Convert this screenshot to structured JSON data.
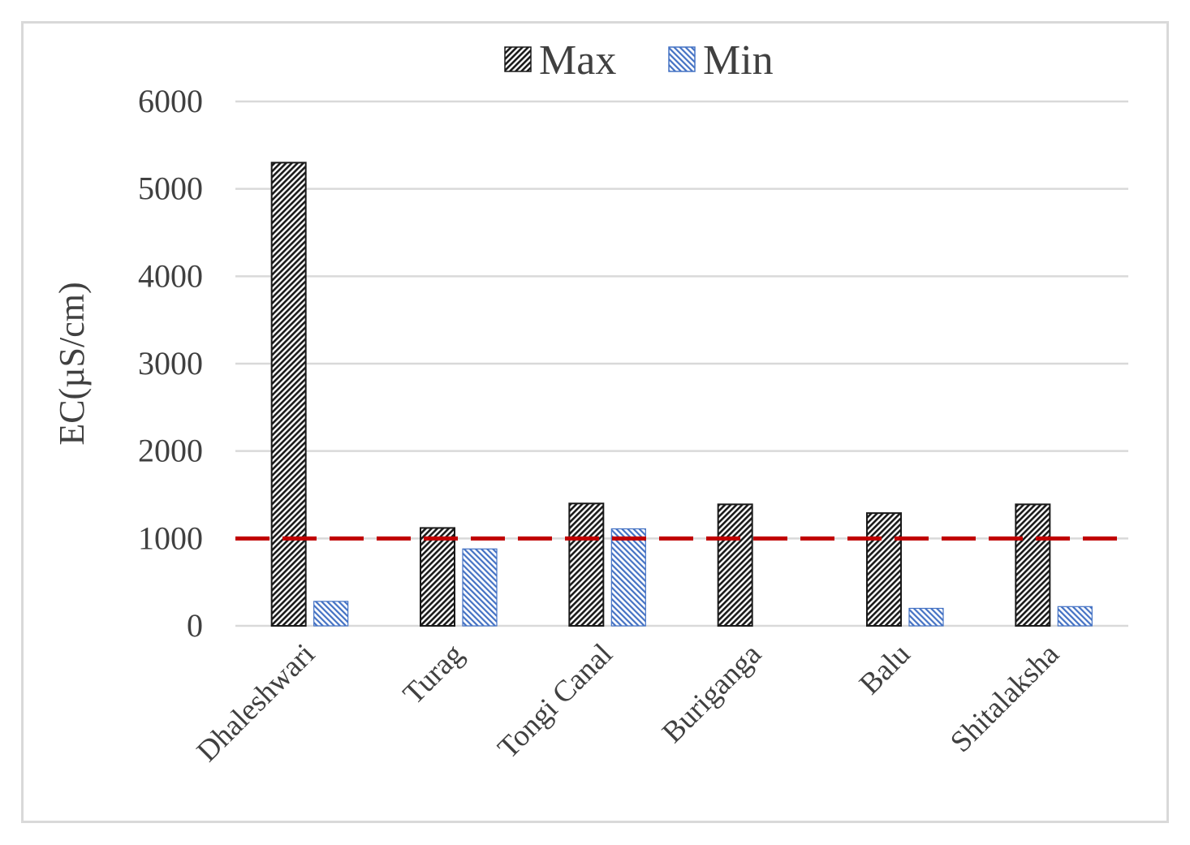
{
  "chart_data": {
    "type": "bar",
    "ylabel": "EC(µS/cm)",
    "xlabel": "",
    "ylim": [
      0,
      6000
    ],
    "yticks": [
      0,
      1000,
      2000,
      3000,
      4000,
      5000,
      6000
    ],
    "categories": [
      "Dhaleshwari",
      "Turag",
      "Tongi Canal",
      "Buriganga",
      "Balu",
      "Shitalaksha"
    ],
    "series": [
      {
        "name": "Max",
        "values": [
          5300,
          1120,
          1400,
          1390,
          1290,
          1390
        ],
        "color": "#404040",
        "pattern": "dense-diagonal-hatch-black"
      },
      {
        "name": "Min",
        "values": [
          280,
          880,
          1110,
          0,
          200,
          220
        ],
        "color": "#4472c4",
        "pattern": "diagonal-hatch-blue"
      }
    ],
    "reference_line": {
      "value": 1000,
      "color": "#c00000",
      "style": "dashed"
    },
    "grid": true,
    "legend_position": "top-center"
  }
}
